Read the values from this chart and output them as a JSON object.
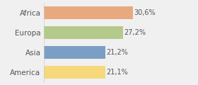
{
  "categories": [
    "Africa",
    "Europa",
    "Asia",
    "America"
  ],
  "values": [
    30.6,
    27.2,
    21.2,
    21.1
  ],
  "labels": [
    "30,6%",
    "27,2%",
    "21,2%",
    "21,1%"
  ],
  "bar_colors": [
    "#e8a97e",
    "#b5c98a",
    "#7b9fc4",
    "#f5d97a"
  ],
  "background_color": "#f0f0f0",
  "xlim": [
    0,
    38
  ],
  "label_fontsize": 7.0,
  "tick_fontsize": 7.5,
  "bar_height": 0.65
}
